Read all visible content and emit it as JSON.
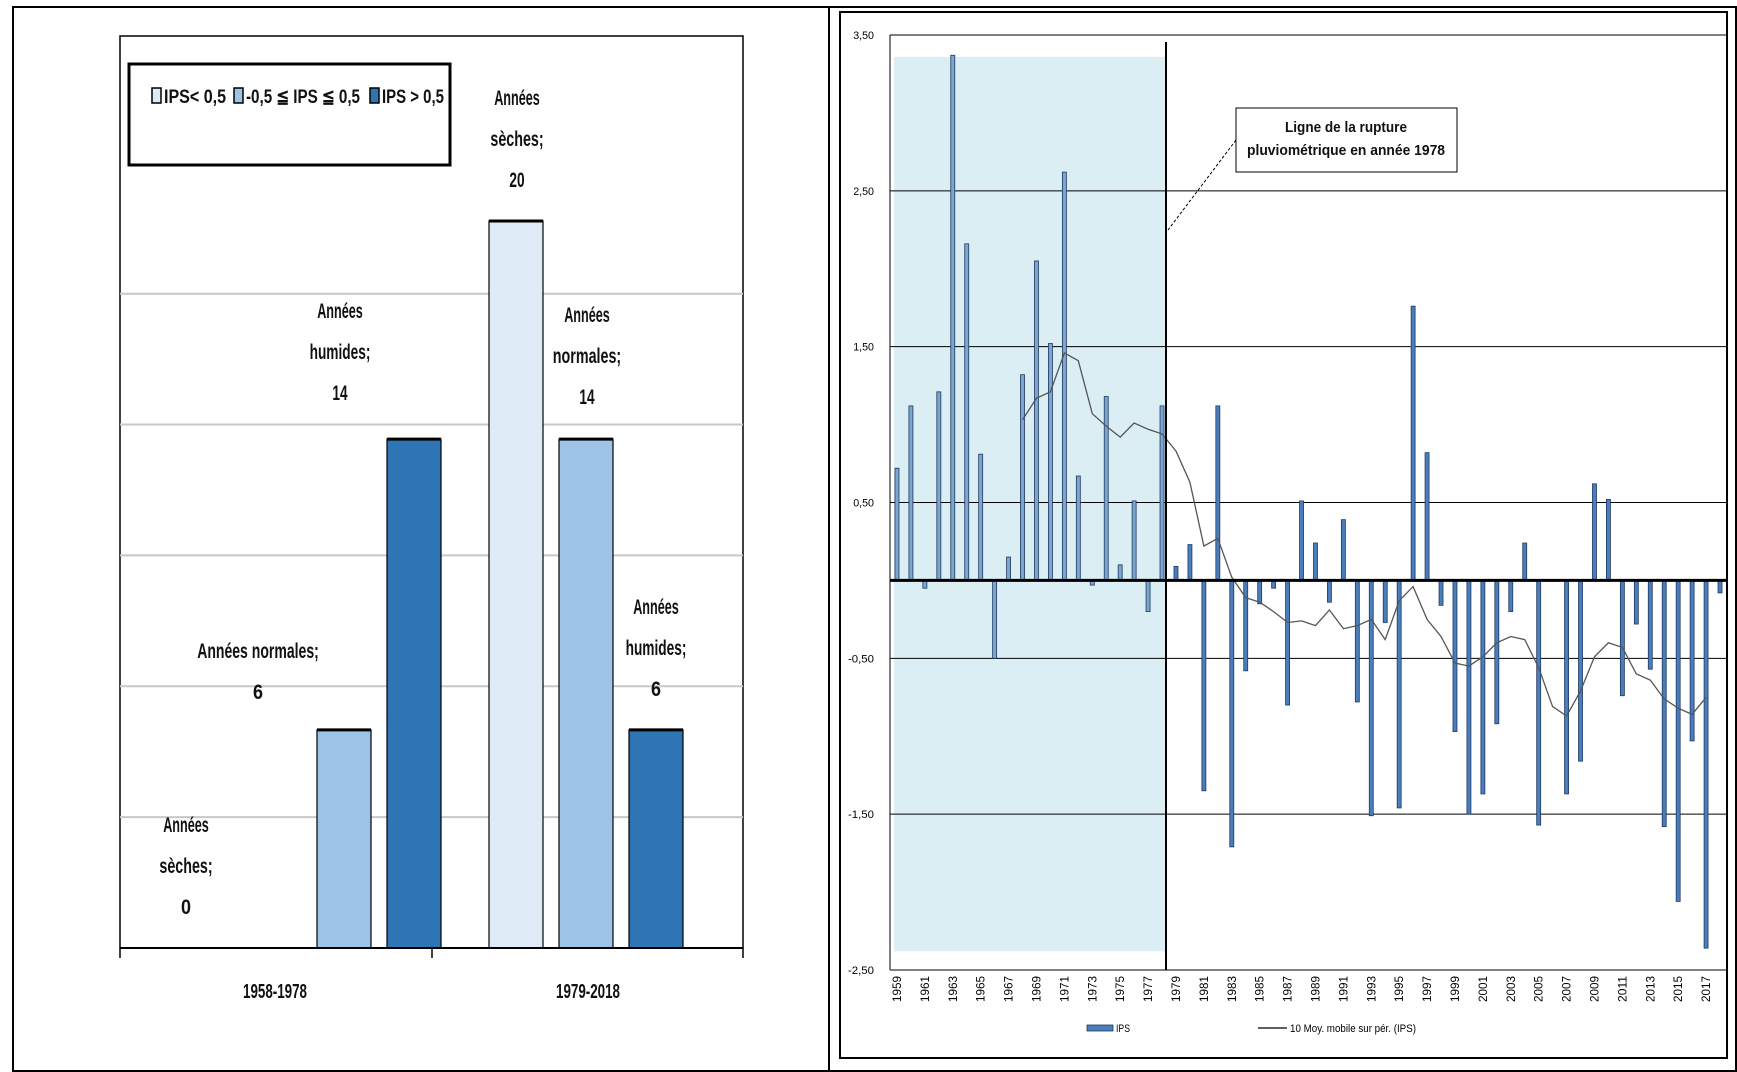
{
  "chart_data": [
    {
      "type": "bar",
      "categories": [
        "1958-1978",
        "1979-2018"
      ],
      "series": [
        {
          "name": "IPS< 0,5",
          "values": [
            0,
            20
          ],
          "color": "#deebf7"
        },
        {
          "name": "-0,5 ≦ IPS ≦ 0,5",
          "values": [
            6,
            14
          ],
          "color": "#9dc3e6"
        },
        {
          "name": "IPS > 0,5",
          "values": [
            14,
            6
          ],
          "color": "#2e75b6"
        }
      ],
      "ylim": [
        0,
        20
      ],
      "grid": true,
      "legend_position": "top-left",
      "data_labels": [
        [
          [
            "Années",
            "sèches;",
            "0"
          ],
          [
            "Années normales;",
            "6"
          ],
          [
            "Années",
            "humides;",
            "14"
          ]
        ],
        [
          [
            "Années",
            "sèches;",
            "20"
          ],
          [
            "Années",
            "normales;",
            "14"
          ],
          [
            "Années",
            "humides;",
            "6"
          ]
        ]
      ]
    },
    {
      "type": "bar",
      "x": [
        1959,
        1960,
        1961,
        1962,
        1963,
        1964,
        1965,
        1966,
        1967,
        1968,
        1969,
        1970,
        1971,
        1972,
        1973,
        1974,
        1975,
        1976,
        1977,
        1978,
        1979,
        1980,
        1981,
        1982,
        1983,
        1984,
        1985,
        1986,
        1987,
        1988,
        1989,
        1990,
        1991,
        1992,
        1993,
        1994,
        1995,
        1996,
        1997,
        1998,
        1999,
        2000,
        2001,
        2002,
        2003,
        2004,
        2005,
        2006,
        2007,
        2008,
        2009,
        2010,
        2011,
        2012,
        2013,
        2014,
        2015,
        2016,
        2017,
        2018
      ],
      "series": [
        {
          "name": "IPS",
          "color": "#4a7ebb",
          "values": [
            0.72,
            1.12,
            -0.05,
            1.21,
            3.37,
            2.16,
            0.81,
            -0.5,
            0.15,
            1.32,
            2.05,
            1.52,
            2.62,
            0.67,
            -0.03,
            1.18,
            0.1,
            0.51,
            -0.2,
            1.12,
            0.09,
            0.23,
            -1.35,
            1.12,
            -1.71,
            -0.58,
            -0.15,
            -0.05,
            -0.8,
            0.51,
            0.24,
            -0.14,
            0.39,
            -0.78,
            -1.51,
            -0.27,
            -1.46,
            1.76,
            0.82,
            -0.16,
            -0.97,
            -1.5,
            -1.37,
            -0.92,
            -0.2,
            0.24,
            -1.57,
            0,
            -1.37,
            -1.16,
            0.62,
            0.52,
            -0.74,
            -0.28,
            -0.57,
            -1.58,
            -2.06,
            -1.03,
            -2.36,
            -0.08
          ]
        },
        {
          "name": "10 Moy. mobile sur pér. (IPS)",
          "type": "line",
          "color": "#555555",
          "values": [
            null,
            null,
            null,
            null,
            null,
            null,
            null,
            null,
            null,
            1.03,
            1.17,
            1.21,
            1.46,
            1.41,
            1.07,
            0.99,
            0.92,
            1.01,
            0.97,
            0.94,
            0.83,
            0.63,
            0.22,
            0.27,
            0.02,
            -0.11,
            -0.14,
            -0.2,
            -0.27,
            -0.26,
            -0.29,
            -0.19,
            -0.31,
            -0.29,
            -0.25,
            -0.38,
            -0.13,
            -0.04,
            -0.25,
            -0.36,
            -0.53,
            -0.55,
            -0.49,
            -0.4,
            -0.36,
            -0.38,
            -0.56,
            -0.81,
            -0.87,
            -0.71,
            -0.49,
            -0.4,
            -0.43,
            -0.6,
            -0.64,
            -0.76,
            -0.82,
            -0.86,
            -0.75,
            null
          ]
        }
      ],
      "ylim": [
        -2.5,
        3.5
      ],
      "yticks": [
        "3,50",
        "2,50",
        "1,50",
        "0,50",
        "-0,50",
        "-1,50",
        "-2,50"
      ],
      "xtick_labels": [
        "1959",
        "1961",
        "1963",
        "1965",
        "1967",
        "1969",
        "1971",
        "1973",
        "1975",
        "1977",
        "1979",
        "1981",
        "1983",
        "1985",
        "1987",
        "1989",
        "1991",
        "1993",
        "1995",
        "1997",
        "1999",
        "2001",
        "2003",
        "2005",
        "2007",
        "2009",
        "2011",
        "2013",
        "2015",
        "2017"
      ],
      "grid": true,
      "highlight_range": [
        1959,
        1978
      ],
      "highlight_color": "#daeef3",
      "break_year": 1978,
      "annotation": [
        "Ligne de la rupture",
        "pluviométrique  en année 1978"
      ],
      "legend_position": "bottom",
      "legend_labels": [
        "IPS",
        "10 Moy. mobile sur pér. (IPS)"
      ]
    }
  ]
}
